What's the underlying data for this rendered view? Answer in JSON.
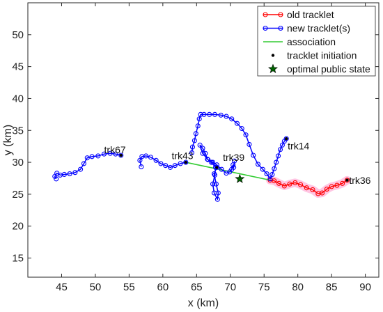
{
  "chart_data": {
    "type": "line",
    "title": "",
    "xlabel": "x (km)",
    "ylabel": "y (km)",
    "xlim": [
      40,
      92
    ],
    "ylim": [
      12,
      55
    ],
    "xticks": [
      45,
      50,
      55,
      60,
      65,
      70,
      75,
      80,
      85,
      90
    ],
    "yticks": [
      15,
      20,
      25,
      30,
      35,
      40,
      45,
      50
    ],
    "grid": false,
    "legend_position": "top-right",
    "colors": {
      "old": "#ff0000",
      "new": "#0000ff",
      "association": "#33cc33",
      "glow": "#ff80c0",
      "initiation": "#000000",
      "star": "#006400"
    },
    "legend": [
      {
        "label": "old tracklet",
        "kind": "old"
      },
      {
        "label": "new tracklet(s)",
        "kind": "new"
      },
      {
        "label": "association",
        "kind": "association"
      },
      {
        "label": "tracklet initiation",
        "kind": "initiation"
      },
      {
        "label": "optimal public state",
        "kind": "star"
      }
    ],
    "series": [
      {
        "name": "trk36",
        "kind": "old",
        "label_at": [
          87.6,
          26.6
        ],
        "points": [
          [
            87.3,
            27.2
          ],
          [
            86.6,
            26.7
          ],
          [
            85.8,
            26.4
          ],
          [
            85.0,
            26.2
          ],
          [
            84.3,
            25.8
          ],
          [
            83.6,
            25.2
          ],
          [
            83.0,
            25.1
          ],
          [
            82.2,
            25.7
          ],
          [
            81.3,
            26.0
          ],
          [
            80.4,
            26.5
          ],
          [
            79.6,
            26.8
          ],
          [
            78.8,
            26.6
          ],
          [
            78.0,
            26.3
          ],
          [
            77.2,
            26.7
          ],
          [
            76.5,
            27.1
          ],
          [
            75.9,
            27.2
          ]
        ],
        "initiation": [
          87.3,
          27.2
        ]
      },
      {
        "name": "trk67",
        "kind": "new",
        "label_at": [
          51.3,
          31.4
        ],
        "points": [
          [
            53.8,
            31.1
          ],
          [
            53.0,
            31.3
          ],
          [
            52.2,
            31.4
          ],
          [
            51.3,
            31.3
          ],
          [
            50.4,
            31.0
          ],
          [
            49.5,
            30.9
          ],
          [
            48.8,
            30.7
          ],
          [
            48.3,
            29.8
          ],
          [
            47.8,
            28.9
          ],
          [
            47.0,
            28.4
          ],
          [
            46.2,
            28.2
          ],
          [
            45.4,
            28.1
          ],
          [
            44.8,
            28.0
          ],
          [
            44.3,
            28.3
          ],
          [
            44.0,
            27.8
          ],
          [
            44.2,
            27.4
          ]
        ],
        "initiation": [
          53.8,
          31.1
        ]
      },
      {
        "name": "trk43",
        "kind": "new",
        "label_at": [
          61.3,
          30.5
        ],
        "points": [
          [
            63.4,
            30.0
          ],
          [
            62.6,
            29.8
          ],
          [
            61.8,
            29.5
          ],
          [
            61.1,
            29.2
          ],
          [
            60.4,
            29.5
          ],
          [
            59.7,
            29.8
          ],
          [
            59.0,
            30.3
          ],
          [
            58.2,
            30.8
          ],
          [
            57.5,
            31.0
          ],
          [
            56.9,
            30.9
          ],
          [
            56.6,
            30.3
          ],
          [
            56.8,
            29.3
          ]
        ],
        "initiation": [
          63.4,
          30.0
        ]
      },
      {
        "name": "trk39",
        "kind": "new",
        "label_at": [
          68.9,
          30.2
        ],
        "points": [
          [
            68.0,
            29.2
          ],
          [
            67.6,
            28.2
          ],
          [
            67.9,
            26.6
          ],
          [
            68.2,
            25.2
          ],
          [
            68.1,
            24.2
          ],
          [
            67.6,
            25.2
          ],
          [
            67.4,
            26.6
          ],
          [
            67.7,
            28.0
          ],
          [
            67.8,
            29.2
          ],
          [
            67.2,
            30.0
          ],
          [
            66.6,
            30.5
          ],
          [
            66.3,
            31.4
          ],
          [
            65.9,
            32.2
          ],
          [
            65.5,
            32.7
          ],
          [
            65.9,
            31.4
          ],
          [
            66.7,
            30.4
          ],
          [
            67.4,
            30.0
          ],
          [
            68.0,
            29.6
          ],
          [
            68.7,
            28.9
          ],
          [
            69.4,
            28.3
          ],
          [
            69.9,
            28.5
          ],
          [
            70.2,
            28.9
          ],
          [
            70.4,
            29.6
          ],
          [
            70.5,
            29.2
          ],
          [
            70.6,
            30.2
          ]
        ],
        "initiation": [
          68.0,
          29.2
        ]
      },
      {
        "name": "trk14",
        "kind": "new",
        "label_at": [
          78.5,
          32.0
        ],
        "points": [
          [
            78.3,
            33.7
          ],
          [
            78.0,
            33.3
          ],
          [
            77.7,
            32.7
          ],
          [
            77.4,
            32.0
          ],
          [
            77.1,
            31.0
          ],
          [
            76.8,
            30.0
          ],
          [
            76.5,
            29.0
          ],
          [
            76.2,
            28.1
          ],
          [
            75.9,
            27.4
          ],
          [
            75.4,
            28.2
          ],
          [
            74.8,
            28.9
          ],
          [
            74.1,
            29.7
          ],
          [
            73.4,
            31.1
          ],
          [
            72.8,
            32.8
          ],
          [
            72.3,
            34.3
          ],
          [
            71.7,
            35.3
          ],
          [
            71.0,
            36.1
          ],
          [
            70.2,
            36.8
          ],
          [
            69.4,
            37.2
          ],
          [
            68.6,
            37.4
          ],
          [
            67.7,
            37.5
          ],
          [
            66.9,
            37.5
          ],
          [
            66.1,
            37.5
          ],
          [
            65.6,
            37.5
          ],
          [
            65.4,
            36.8
          ],
          [
            65.2,
            35.7
          ],
          [
            64.9,
            34.5
          ],
          [
            64.7,
            33.4
          ],
          [
            64.4,
            32.4
          ],
          [
            64.3,
            31.5
          ]
        ],
        "initiation": [
          78.3,
          33.7
        ]
      }
    ],
    "association": [
      [
        63.4,
        30.0
      ],
      [
        75.9,
        27.2
      ]
    ],
    "optimal_public_state": [
      71.4,
      27.4
    ]
  }
}
